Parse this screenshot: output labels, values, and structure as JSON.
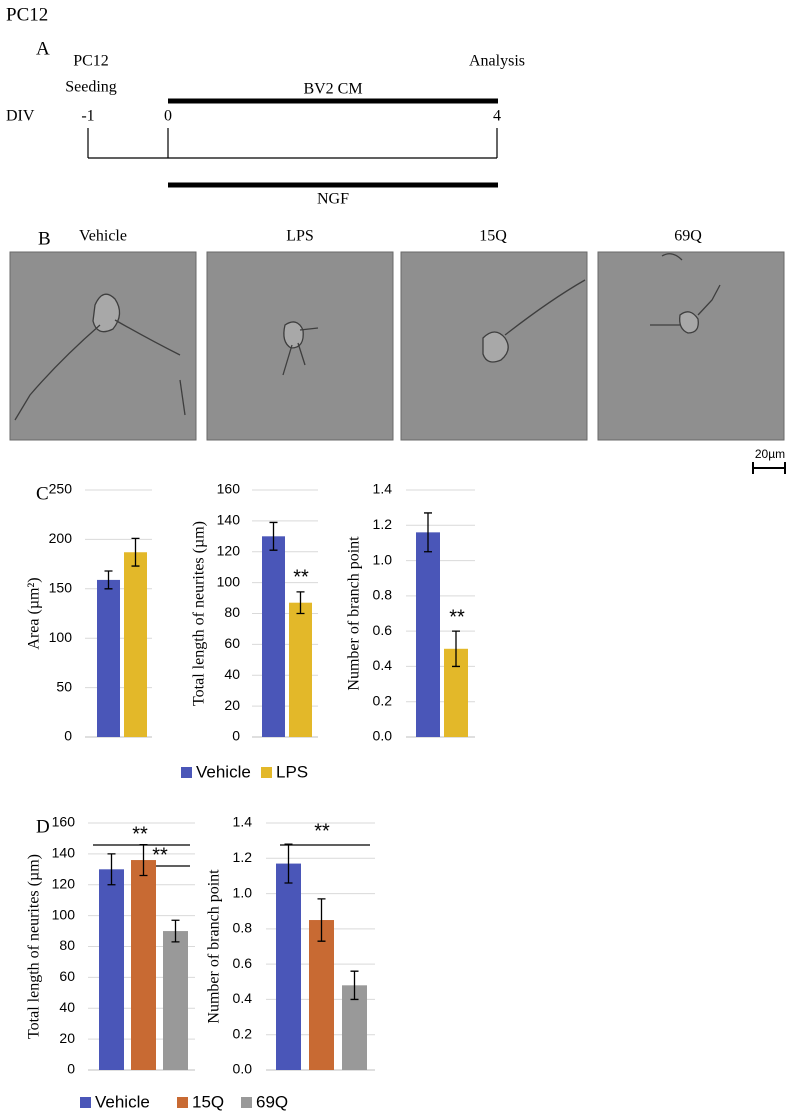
{
  "title": "PC12",
  "panels": [
    "A",
    "B",
    "C",
    "D"
  ],
  "timeline": {
    "row_label": "DIV",
    "seeding": [
      "PC12",
      "Seeding"
    ],
    "analysis": "Analysis",
    "days": [
      "-1",
      "0",
      "4"
    ],
    "treatments": [
      "BV2 CM",
      "NGF"
    ]
  },
  "images": {
    "labels": [
      "Vehicle",
      "LPS",
      "15Q",
      "69Q"
    ],
    "scale_bar": "20µm"
  },
  "chart_data": [
    {
      "type": "bar",
      "ylabel": "Area (µm²)",
      "ylim": [
        0,
        250
      ],
      "yticks": [
        0,
        50,
        100,
        150,
        200,
        250
      ],
      "grid": true,
      "series": [
        {
          "name": "Vehicle",
          "color": "#4a56b8",
          "values": [
            159
          ],
          "errors": [
            9
          ]
        },
        {
          "name": "LPS",
          "color": "#e3b829",
          "values": [
            187
          ],
          "errors": [
            14
          ]
        }
      ]
    },
    {
      "type": "bar",
      "ylabel": "Total length of neurites (µm)",
      "ylim": [
        0,
        160
      ],
      "yticks": [
        0,
        20,
        40,
        60,
        80,
        100,
        120,
        140,
        160
      ],
      "grid": true,
      "annotations": [
        "**"
      ],
      "series": [
        {
          "color": "#4a56b8",
          "values": [
            130
          ],
          "errors": [
            9
          ]
        },
        {
          "color": "#e3b829",
          "values": [
            87
          ],
          "errors": [
            7
          ]
        }
      ]
    },
    {
      "type": "bar",
      "ylabel": "Number of branch point",
      "ylim": [
        0,
        1.4
      ],
      "yticks": [
        {
          "value": 0,
          "label": "0.0"
        },
        0.2,
        0.4,
        0.6,
        0.8,
        {
          "value": 1,
          "label": "1.0"
        },
        1.2,
        1.4
      ],
      "grid": true,
      "annotations": [
        "**"
      ],
      "series": [
        {
          "color": "#4a56b8",
          "values": [
            1.16
          ],
          "errors": [
            0.11
          ]
        },
        {
          "color": "#e3b829",
          "values": [
            0.5
          ],
          "errors": [
            0.1
          ]
        }
      ]
    },
    {
      "type": "bar",
      "ylabel": "Total length of neurites (µm)",
      "ylim": [
        0,
        160
      ],
      "yticks": [
        0,
        20,
        40,
        60,
        80,
        100,
        120,
        140,
        160
      ],
      "grid": true,
      "annotations": [
        "**",
        "**"
      ],
      "series": [
        {
          "name": "Vehicle",
          "color": "#4a56b8",
          "values": [
            130
          ],
          "errors": [
            10
          ]
        },
        {
          "name": "15Q",
          "color": "#c86a33",
          "values": [
            136
          ],
          "errors": [
            10
          ]
        },
        {
          "name": "69Q",
          "color": "#999999",
          "values": [
            90
          ],
          "errors": [
            7
          ]
        }
      ]
    },
    {
      "type": "bar",
      "ylabel": "Number of branch point",
      "ylim": [
        0,
        1.4
      ],
      "yticks": [
        {
          "value": 0,
          "label": "0.0"
        },
        0.2,
        0.4,
        0.6,
        0.8,
        {
          "value": 1,
          "label": "1.0"
        },
        1.2,
        1.4
      ],
      "grid": true,
      "annotations": [
        "**"
      ],
      "series": [
        {
          "color": "#4a56b8",
          "values": [
            1.17
          ],
          "errors": [
            0.11
          ]
        },
        {
          "color": "#c86a33",
          "values": [
            0.85
          ],
          "errors": [
            0.12
          ]
        },
        {
          "color": "#999999",
          "values": [
            0.48
          ],
          "errors": [
            0.08
          ]
        }
      ]
    }
  ]
}
